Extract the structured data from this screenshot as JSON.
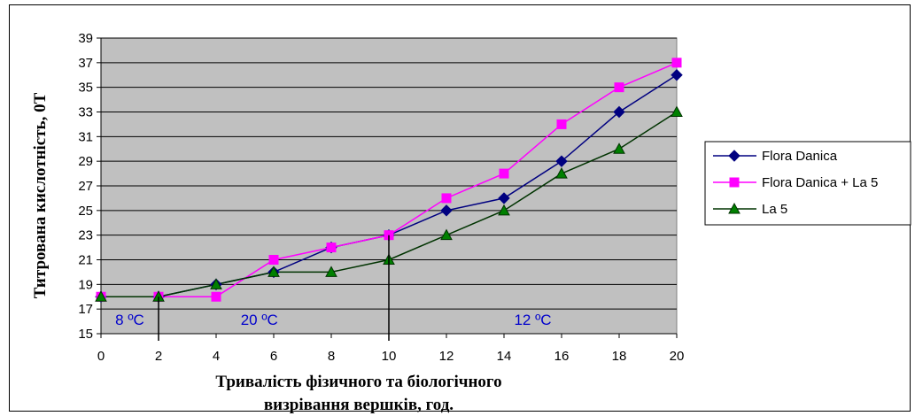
{
  "chart_data": {
    "type": "line",
    "xlabel_line1": "Тривалість фізичного та біологічного",
    "xlabel_line2": "визрівання вершків, год.",
    "ylabel": "Титрована кислотність,  0Т",
    "xlim": [
      0,
      20
    ],
    "ylim": [
      15,
      39
    ],
    "x_ticks": [
      0,
      2,
      4,
      6,
      8,
      10,
      12,
      14,
      16,
      18,
      20
    ],
    "y_ticks": [
      15,
      17,
      19,
      21,
      23,
      25,
      27,
      29,
      31,
      33,
      35,
      37,
      39
    ],
    "grid": true,
    "legend_position": "right",
    "plot_background": "#c0c0c0",
    "x": [
      0,
      2,
      4,
      6,
      8,
      10,
      12,
      14,
      16,
      18,
      20
    ],
    "series": [
      {
        "name": "Flora Danica",
        "color": "#000080",
        "marker": "diamond",
        "values": [
          18,
          18,
          19,
          20,
          22,
          23,
          25,
          26,
          29,
          33,
          36
        ]
      },
      {
        "name": "Flora Danica + La 5",
        "color": "#ff00ff",
        "marker": "square",
        "values": [
          18,
          18,
          18,
          21,
          22,
          23,
          26,
          28,
          32,
          35,
          37
        ]
      },
      {
        "name": "La 5",
        "color": "#003300",
        "marker_fill": "#008000",
        "marker": "triangle",
        "values": [
          18,
          18,
          19,
          20,
          20,
          21,
          23,
          25,
          28,
          30,
          33
        ]
      }
    ],
    "annotations": [
      {
        "text": "8 ºC",
        "x": 1
      },
      {
        "text": "20 ºC",
        "x": 5.5
      },
      {
        "text": "12 ºC",
        "x": 15
      }
    ],
    "divider_lines_x": [
      2,
      10
    ]
  }
}
